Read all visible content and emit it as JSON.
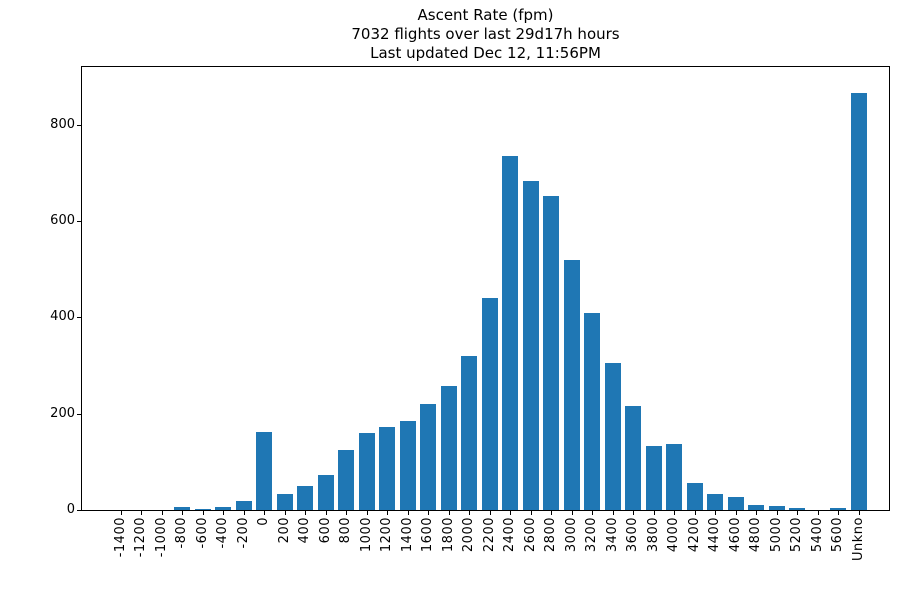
{
  "chart_data": {
    "type": "bar",
    "title": "Ascent Rate (fpm)",
    "subtitle": "7032 flights over last 29d17h hours",
    "updated": "Last updated Dec 12, 11:56PM",
    "xlabel": "",
    "ylabel": "",
    "categories": [
      "-1400",
      "-1200",
      "-1000",
      "-800",
      "-600",
      "-400",
      "-200",
      "0",
      "200",
      "400",
      "600",
      "800",
      "1000",
      "1200",
      "1400",
      "1600",
      "1800",
      "2000",
      "2200",
      "2400",
      "2600",
      "2800",
      "3000",
      "3200",
      "3400",
      "3600",
      "3800",
      "4000",
      "4200",
      "4400",
      "4600",
      "4800",
      "5000",
      "5200",
      "5400",
      "5600",
      "Unkno"
    ],
    "values": [
      0,
      0,
      0,
      6,
      3,
      6,
      18,
      161,
      33,
      49,
      73,
      125,
      160,
      172,
      184,
      220,
      258,
      320,
      440,
      735,
      684,
      652,
      520,
      410,
      306,
      216,
      132,
      138,
      56,
      33,
      28,
      11,
      8,
      4,
      0,
      5,
      866
    ],
    "total_flights": 7032,
    "yticks": [
      0,
      200,
      400,
      600,
      800
    ],
    "ylim": [
      0,
      920
    ],
    "x_tick_rotation": 90,
    "grid": false,
    "legend_position": "none",
    "bar_color": "#1f77b4",
    "axis_color": "#000000",
    "background_color": "#ffffff"
  }
}
